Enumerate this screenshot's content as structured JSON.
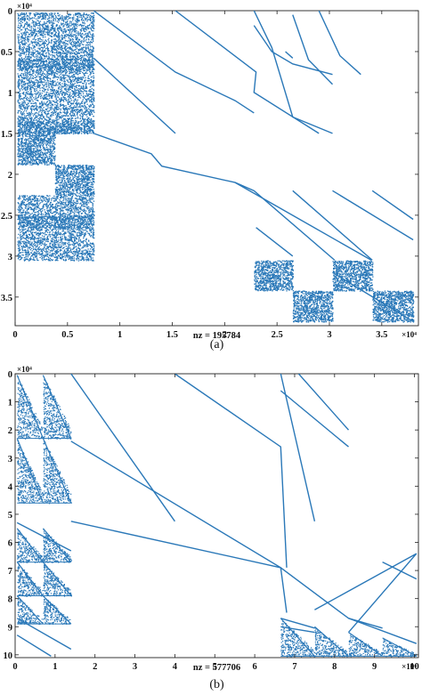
{
  "figure": {
    "colors": {
      "marker": "#2a78b8",
      "axis": "#222222",
      "background": "#ffffff"
    }
  },
  "chart_data": [
    {
      "type": "scatter",
      "subtype": "sparsity-pattern",
      "caption": "(a)",
      "xlabel": "nz = 195784",
      "exponent_x": "×10⁴",
      "exponent_y": "×10⁴",
      "xlim": [
        0,
        3.85
      ],
      "ylim": [
        0,
        3.85
      ],
      "y_reversed": true,
      "x_ticks": [
        {
          "v": 0,
          "label": "0"
        },
        {
          "v": 0.5,
          "label": "0.5"
        },
        {
          "v": 1,
          "label": "1"
        },
        {
          "v": 1.5,
          "label": "1.5"
        },
        {
          "v": 2,
          "label": "2"
        },
        {
          "v": 2.5,
          "label": "2.5"
        },
        {
          "v": 3,
          "label": "3"
        },
        {
          "v": 3.5,
          "label": "3.5"
        }
      ],
      "y_ticks": [
        {
          "v": 0,
          "label": "0"
        },
        {
          "v": 0.5,
          "label": "0.5"
        },
        {
          "v": 1,
          "label": "1"
        },
        {
          "v": 1.5,
          "label": "1.5"
        },
        {
          "v": 2,
          "label": "2"
        },
        {
          "v": 2.5,
          "label": "2.5"
        },
        {
          "v": 3,
          "label": "3"
        },
        {
          "v": 3.5,
          "label": "3.5"
        }
      ],
      "blocks": [
        {
          "x": [
            0.02,
            0.38
          ],
          "y": [
            0.02,
            0.58
          ],
          "density": 0.85
        },
        {
          "x": [
            0.38,
            0.75
          ],
          "y": [
            0.02,
            0.58
          ],
          "density": 0.85
        },
        {
          "x": [
            0.02,
            0.38
          ],
          "y": [
            0.58,
            0.72
          ],
          "density": 1.6
        },
        {
          "x": [
            0.38,
            0.75
          ],
          "y": [
            0.58,
            0.72
          ],
          "density": 1.6
        },
        {
          "x": [
            0.02,
            0.38
          ],
          "y": [
            0.72,
            1.35
          ],
          "density": 0.85
        },
        {
          "x": [
            0.38,
            0.75
          ],
          "y": [
            0.72,
            1.35
          ],
          "density": 0.85
        },
        {
          "x": [
            0.02,
            0.38
          ],
          "y": [
            1.35,
            1.5
          ],
          "density": 1.6
        },
        {
          "x": [
            0.38,
            0.75
          ],
          "y": [
            1.35,
            1.5
          ],
          "density": 1.6
        },
        {
          "x": [
            0.02,
            0.38
          ],
          "y": [
            1.5,
            1.88
          ],
          "density": 1.3
        },
        {
          "x": [
            0.38,
            0.75
          ],
          "y": [
            1.88,
            2.25
          ],
          "density": 1.3
        },
        {
          "x": [
            0.02,
            0.38
          ],
          "y": [
            2.25,
            2.5
          ],
          "density": 0.9
        },
        {
          "x": [
            0.38,
            0.75
          ],
          "y": [
            2.25,
            2.5
          ],
          "density": 0.9
        },
        {
          "x": [
            0.02,
            0.38
          ],
          "y": [
            2.5,
            2.65
          ],
          "density": 1.6
        },
        {
          "x": [
            0.38,
            0.75
          ],
          "y": [
            2.5,
            2.65
          ],
          "density": 1.6
        },
        {
          "x": [
            0.02,
            0.38
          ],
          "y": [
            2.65,
            3.05
          ],
          "density": 0.9
        },
        {
          "x": [
            0.38,
            0.75
          ],
          "y": [
            2.65,
            3.05
          ],
          "density": 0.9
        },
        {
          "x": [
            2.28,
            2.65
          ],
          "y": [
            3.05,
            3.42
          ],
          "density": 1.3
        },
        {
          "x": [
            2.65,
            3.03
          ],
          "y": [
            3.42,
            3.8
          ],
          "density": 1.3
        },
        {
          "x": [
            3.03,
            3.41
          ],
          "y": [
            3.05,
            3.42
          ],
          "density": 1.3
        },
        {
          "x": [
            3.41,
            3.8
          ],
          "y": [
            3.42,
            3.8
          ],
          "density": 1.3
        }
      ],
      "series": [
        {
          "points": [
            [
              0.75,
              0
            ],
            [
              1.53,
              0.75
            ],
            [
              2.1,
              1.1
            ],
            [
              2.28,
              1.25
            ]
          ]
        },
        {
          "points": [
            [
              0.75,
              0.58
            ],
            [
              1.53,
              1.5
            ]
          ]
        },
        {
          "points": [
            [
              1.53,
              0
            ],
            [
              2.3,
              0.75
            ],
            [
              2.28,
              1.0
            ],
            [
              2.9,
              1.5
            ]
          ]
        },
        {
          "points": [
            [
              2.28,
              0.18
            ],
            [
              2.45,
              0.5
            ],
            [
              2.65,
              0.65
            ],
            [
              3.03,
              0.78
            ]
          ]
        },
        {
          "points": [
            [
              2.65,
              0.05
            ],
            [
              2.8,
              0.6
            ],
            [
              3.03,
              0.9
            ]
          ]
        },
        {
          "points": [
            [
              2.28,
              0
            ],
            [
              2.45,
              0.45
            ],
            [
              2.65,
              1.3
            ],
            [
              3.03,
              1.5
            ]
          ]
        },
        {
          "points": [
            [
              2.58,
              0.5
            ],
            [
              2.65,
              0.58
            ]
          ]
        },
        {
          "points": [
            [
              2.9,
              0.0
            ],
            [
              3.1,
              0.55
            ],
            [
              3.3,
              0.78
            ]
          ]
        },
        {
          "points": [
            [
              0.75,
              1.5
            ],
            [
              1.3,
              1.75
            ],
            [
              1.4,
              1.9
            ],
            [
              2.1,
              2.1
            ],
            [
              2.28,
              2.2
            ],
            [
              3.05,
              3.05
            ]
          ]
        },
        {
          "points": [
            [
              2.1,
              2.1
            ],
            [
              3.4,
              3.05
            ]
          ]
        },
        {
          "points": [
            [
              2.3,
              2.65
            ],
            [
              2.65,
              3.0
            ]
          ]
        },
        {
          "points": [
            [
              3.03,
              2.2
            ],
            [
              3.8,
              2.8
            ]
          ]
        },
        {
          "points": [
            [
              3.41,
              2.2
            ],
            [
              3.8,
              2.55
            ]
          ]
        },
        {
          "points": [
            [
              2.65,
              2.2
            ],
            [
              3.41,
              3.05
            ]
          ]
        },
        {
          "points": [
            [
              3.03,
              3.2
            ],
            [
              3.8,
              3.8
            ]
          ]
        }
      ]
    },
    {
      "type": "scatter",
      "subtype": "sparsity-pattern",
      "caption": "(b)",
      "xlabel": "nz = 577706",
      "exponent_x": "×10⁴",
      "exponent_y": "×10⁴",
      "xlim": [
        0,
        10.1
      ],
      "ylim": [
        0,
        10.1
      ],
      "y_reversed": true,
      "x_ticks": [
        {
          "v": 0,
          "label": "0"
        },
        {
          "v": 1,
          "label": "1"
        },
        {
          "v": 2,
          "label": "2"
        },
        {
          "v": 3,
          "label": "3"
        },
        {
          "v": 4,
          "label": "4"
        },
        {
          "v": 5,
          "label": "5"
        },
        {
          "v": 6,
          "label": "6"
        },
        {
          "v": 7,
          "label": "7"
        },
        {
          "v": 8,
          "label": "8"
        },
        {
          "v": 9,
          "label": "9"
        },
        {
          "v": 10,
          "label": "10"
        }
      ],
      "y_ticks": [
        {
          "v": 0,
          "label": "0"
        },
        {
          "v": 1,
          "label": "1"
        },
        {
          "v": 2,
          "label": "2"
        },
        {
          "v": 3,
          "label": "3"
        },
        {
          "v": 4,
          "label": "4"
        },
        {
          "v": 5,
          "label": "5"
        },
        {
          "v": 6,
          "label": "6"
        },
        {
          "v": 7,
          "label": "7"
        },
        {
          "v": 8,
          "label": "8"
        },
        {
          "v": 9,
          "label": "9"
        },
        {
          "v": 10,
          "label": "10"
        }
      ],
      "triangles": [
        {
          "x": [
            0.05,
            0.7
          ],
          "y": [
            0.05,
            2.3
          ],
          "density": 1.0
        },
        {
          "x": [
            0.7,
            1.4
          ],
          "y": [
            0.05,
            2.3
          ],
          "density": 1.0
        },
        {
          "x": [
            0.05,
            0.7
          ],
          "y": [
            2.3,
            4.6
          ],
          "density": 1.0
        },
        {
          "x": [
            0.7,
            1.4
          ],
          "y": [
            2.3,
            4.6
          ],
          "density": 1.0
        },
        {
          "x": [
            0.05,
            0.7
          ],
          "y": [
            5.5,
            6.7
          ],
          "density": 1.2
        },
        {
          "x": [
            0.7,
            1.4
          ],
          "y": [
            5.5,
            6.7
          ],
          "density": 1.2
        },
        {
          "x": [
            0.05,
            0.7
          ],
          "y": [
            6.7,
            7.9
          ],
          "density": 1.2
        },
        {
          "x": [
            0.7,
            1.4
          ],
          "y": [
            6.7,
            7.9
          ],
          "density": 1.2
        },
        {
          "x": [
            0.05,
            0.7
          ],
          "y": [
            7.9,
            8.9
          ],
          "density": 1.2
        },
        {
          "x": [
            0.7,
            1.4
          ],
          "y": [
            7.9,
            8.9
          ],
          "density": 1.2
        },
        {
          "x": [
            6.65,
            7.5
          ],
          "y": [
            8.7,
            10.05
          ],
          "density": 1.0
        },
        {
          "x": [
            7.5,
            8.35
          ],
          "y": [
            9.0,
            10.05
          ],
          "density": 1.0
        },
        {
          "x": [
            8.35,
            9.2
          ],
          "y": [
            9.2,
            10.05
          ],
          "density": 1.0
        },
        {
          "x": [
            9.2,
            10.05
          ],
          "y": [
            9.4,
            10.05
          ],
          "density": 1.0
        }
      ],
      "series": [
        {
          "points": [
            [
              1.4,
              0
            ],
            [
              4.0,
              5.25
            ]
          ]
        },
        {
          "points": [
            [
              1.4,
              2.4
            ],
            [
              6.65,
              6.9
            ],
            [
              6.8,
              8.5
            ]
          ]
        },
        {
          "points": [
            [
              4.0,
              0
            ],
            [
              6.65,
              2.6
            ],
            [
              6.8,
              6.9
            ]
          ]
        },
        {
          "points": [
            [
              6.65,
              0
            ],
            [
              7.5,
              5.25
            ]
          ]
        },
        {
          "points": [
            [
              6.65,
              0.6
            ],
            [
              8.35,
              2.6
            ]
          ]
        },
        {
          "points": [
            [
              7.1,
              0
            ],
            [
              8.35,
              2.0
            ]
          ]
        },
        {
          "points": [
            [
              1.4,
              5.25
            ],
            [
              6.65,
              6.9
            ],
            [
              8.35,
              8.7
            ],
            [
              10.05,
              9.6
            ]
          ]
        },
        {
          "points": [
            [
              6.65,
              8.7
            ],
            [
              7.5,
              9.05
            ]
          ]
        },
        {
          "points": [
            [
              6.65,
              9.0
            ],
            [
              7.5,
              9.2
            ]
          ]
        },
        {
          "points": [
            [
              8.35,
              8.7
            ],
            [
              9.2,
              9.05
            ]
          ]
        },
        {
          "points": [
            [
              7.5,
              8.4
            ],
            [
              10.05,
              6.4
            ],
            [
              8.35,
              9.2
            ]
          ]
        },
        {
          "points": [
            [
              9.2,
              6.7
            ],
            [
              10.05,
              7.3
            ]
          ]
        },
        {
          "points": [
            [
              0.05,
              8.7
            ],
            [
              1.4,
              9.8
            ]
          ]
        },
        {
          "points": [
            [
              0.05,
              9.3
            ],
            [
              0.9,
              10.05
            ]
          ]
        },
        {
          "points": [
            [
              0.05,
              5.3
            ],
            [
              1.4,
              6.3
            ]
          ]
        }
      ]
    }
  ]
}
